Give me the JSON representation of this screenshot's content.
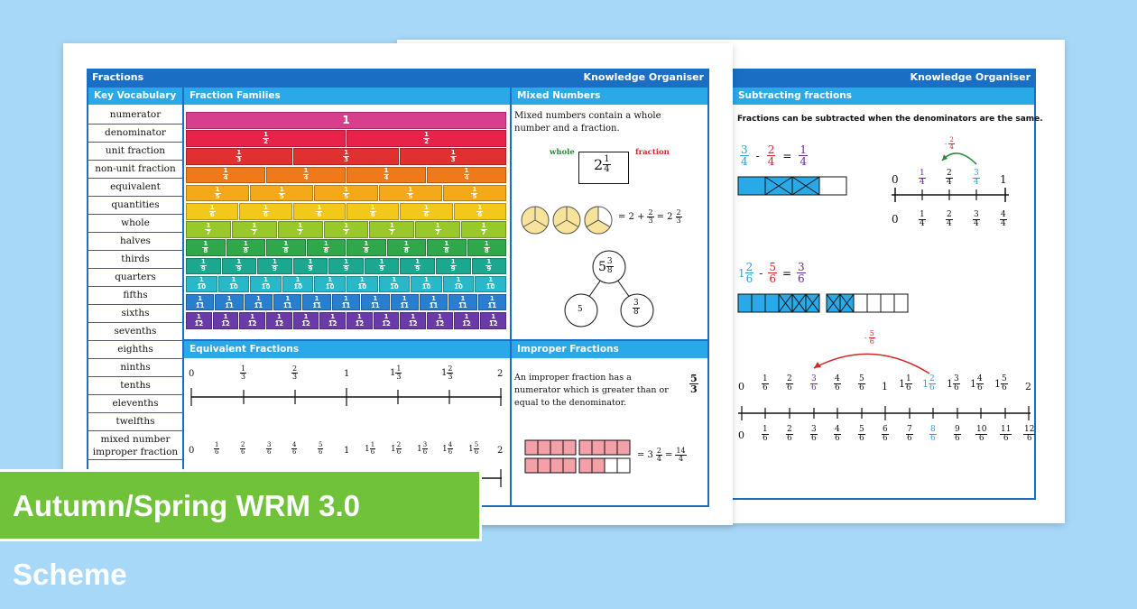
{
  "back_sheet": {
    "header_right": "Knowledge Organiser",
    "section_title": "Subtracting fractions",
    "intro": "Fractions can be subtracted when the denominators are the same.",
    "eq1": {
      "a": [
        "3",
        "4"
      ],
      "op": "-",
      "b": [
        "2",
        "4"
      ],
      "eq": "=",
      "c": [
        "1",
        "4"
      ]
    },
    "eq2": {
      "whole": "1",
      "a": [
        "2",
        "6"
      ],
      "op": "-",
      "b": [
        "5",
        "6"
      ],
      "eq": "=",
      "c": [
        "3",
        "6"
      ]
    },
    "jump1": [
      "2",
      "4"
    ],
    "jump2": [
      "5",
      "6"
    ],
    "line1_top": [
      "0",
      "1/4",
      "2/4",
      "3/4",
      "1"
    ],
    "line1_bottom": [
      "0",
      "1/4",
      "2/4",
      "3/4",
      "4/4"
    ],
    "line2_top": [
      "0",
      "1/6",
      "2/6",
      "3/6",
      "4/6",
      "5/6",
      "1",
      "1 1/6",
      "1 2/6",
      "1 3/6",
      "1 4/6",
      "1 5/6",
      "2"
    ],
    "line2_bottom": [
      "0",
      "1/6",
      "2/6",
      "3/6",
      "4/6",
      "5/6",
      "6/6",
      "7/6",
      "8/6",
      "9/6",
      "10/6",
      "11/6",
      "12/6"
    ]
  },
  "front_sheet": {
    "header_left": "Fractions",
    "header_right": "Knowledge Organiser",
    "vocab_title": "Key Vocabulary",
    "vocab": [
      "numerator",
      "denominator",
      "unit fraction",
      "non-unit fraction",
      "equivalent",
      "quantities",
      "whole",
      "halves",
      "thirds",
      "quarters",
      "fifths",
      "sixths",
      "sevenths",
      "eighths",
      "ninths",
      "tenths",
      "elevenths",
      "twelfths"
    ],
    "vocab_last": [
      "mixed number",
      "improper fraction"
    ],
    "families_title": "Fraction Families",
    "families_whole": "1",
    "families_colors": [
      "#d63f8c",
      "#e8234a",
      "#e03030",
      "#f07a1a",
      "#f5a81a",
      "#f2c81a",
      "#98c82a",
      "#2ea84a",
      "#1ca890",
      "#28b8c8",
      "#2a7ed0",
      "#6a3aa8"
    ],
    "mixed_title": "Mixed Numbers",
    "mixed_text": "Mixed numbers contain a whole number and a fraction.",
    "mixed_whole_label": "whole",
    "mixed_fraction_label": "fraction",
    "mixed_example": {
      "whole": "2",
      "n": "1",
      "d": "4"
    },
    "pies_eq": {
      "eq": "= 2 +",
      "n": "2",
      "d": "3",
      "eq2": "= 2",
      "n2": "2",
      "d2": "3"
    },
    "tree": {
      "top_whole": "5",
      "top_n": "3",
      "top_d": "8",
      "left": "5",
      "right_n": "3",
      "right_d": "8"
    },
    "equiv_title": "Equivalent Fractions",
    "equiv_top": [
      "0",
      "1/3",
      "2/3",
      "1",
      "1 1/3",
      "1 2/3",
      "2"
    ],
    "equiv_bottom": [
      "0",
      "1/6",
      "2/6",
      "3/6",
      "4/6",
      "5/6",
      "1",
      "1 1/6",
      "1 2/6",
      "1 3/6",
      "1 4/6",
      "1 5/6",
      "2"
    ],
    "improper_title": "Improper Fractions",
    "improper_text": "An improper fraction has a numerator which is greater than or equal to the denominator.",
    "improper_example": [
      "5",
      "3"
    ],
    "improper_eq": {
      "eq": "= 3",
      "n": "2",
      "d": "4",
      "eq2": "=",
      "n2": "14",
      "d2": "4"
    }
  },
  "banner_text": "Autumn/Spring WRM 3.0 Scheme"
}
